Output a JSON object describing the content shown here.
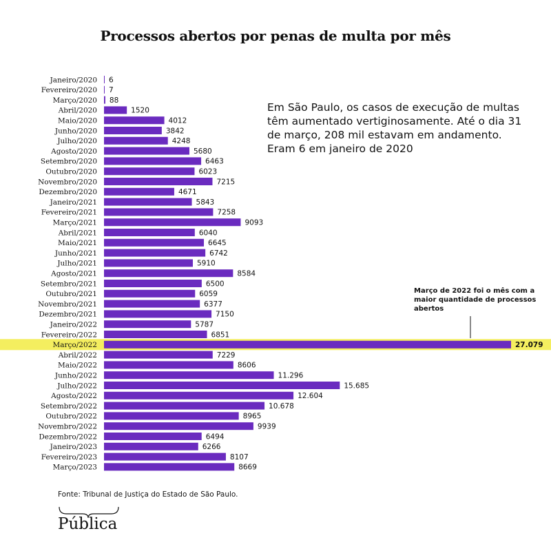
{
  "colors": {
    "bar": "#6a2bbf",
    "highlight": "#f4ee5f",
    "text": "#111111"
  },
  "chart_data": {
    "type": "bar",
    "orientation": "horizontal",
    "title": "Processos abertos por penas de multa por mês",
    "categories": [
      "Janeiro/2020",
      "Fevereiro/2020",
      "Março/2020",
      "Abril/2020",
      "Maio/2020",
      "Junho/2020",
      "Julho/2020",
      "Agosto/2020",
      "Setembro/2020",
      "Outubro/2020",
      "Novembro/2020",
      "Dezembro/2020",
      "Janeiro/2021",
      "Fevereiro/2021",
      "Março/2021",
      "Abril/2021",
      "Maio/2021",
      "Junho/2021",
      "Julho/2021",
      "Agosto/2021",
      "Setembro/2021",
      "Outubro/2021",
      "Novembro/2021",
      "Dezembro/2021",
      "Janeiro/2022",
      "Fevereiro/2022",
      "Março/2022",
      "Abril/2022",
      "Maio/2022",
      "Junho/2022",
      "Julho/2022",
      "Agosto/2022",
      "Setembro/2022",
      "Outubro/2022",
      "Novembro/2022",
      "Dezembro/2022",
      "Janeiro/2023",
      "Fevereiro/2023",
      "Março/2023"
    ],
    "values": [
      6,
      7,
      88,
      1520,
      4012,
      3842,
      4248,
      5680,
      6463,
      6023,
      7215,
      4671,
      5843,
      7258,
      9093,
      6040,
      6645,
      6742,
      5910,
      8584,
      6500,
      6059,
      6377,
      7150,
      5787,
      6851,
      27079,
      7229,
      8606,
      11296,
      15685,
      12604,
      10678,
      8965,
      9939,
      6494,
      6266,
      8107,
      8669
    ],
    "value_labels": [
      "6",
      "7",
      "88",
      "1520",
      "4012",
      "3842",
      "4248",
      "5680",
      "6463",
      "6023",
      "7215",
      "4671",
      "5843",
      "7258",
      "9093",
      "6040",
      "6645",
      "6742",
      "5910",
      "8584",
      "6500",
      "6059",
      "6377",
      "7150",
      "5787",
      "6851",
      "27.079",
      "7229",
      "8606",
      "11.296",
      "15.685",
      "12.604",
      "10.678",
      "8965",
      "9939",
      "6494",
      "6266",
      "8107",
      "8669"
    ],
    "highlight_category": "Março/2022",
    "xlim": [
      0,
      27079
    ],
    "grid": false
  },
  "note": "Em São Paulo, os casos de execução de multas têm aumentado vertiginosamente. Até o dia 31 de março, 208 mil estavam em andamento. Eram 6 em janeiro de 2020",
  "callout": "Março de 2022 foi o mês com a maior quantidade de processos abertos",
  "source": "Fonte: Tribunal de Justiça do Estado de São Paulo.",
  "logo": "Pública"
}
